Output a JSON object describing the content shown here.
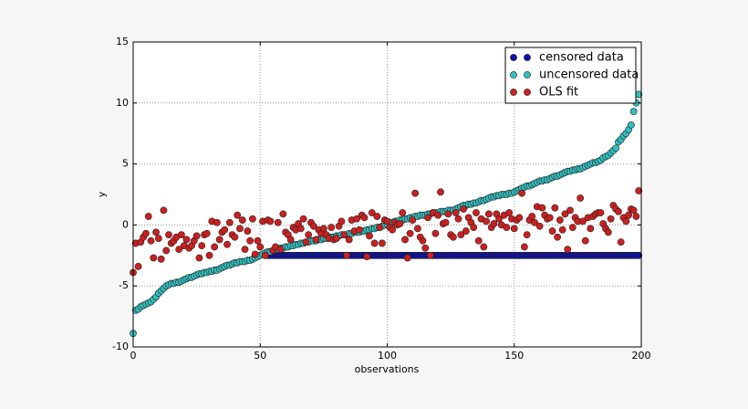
{
  "chart_data": {
    "type": "scatter",
    "xlabel": "observations",
    "ylabel": "y",
    "xlim": [
      0,
      200
    ],
    "xticks": [
      0,
      50,
      100,
      150,
      200
    ],
    "ylim": [
      -10,
      15
    ],
    "yticks": [
      -10,
      -5,
      0,
      5,
      10,
      15
    ],
    "grid": true,
    "legend": "upper right",
    "x": [
      0,
      1,
      2,
      3,
      4,
      5,
      6,
      7,
      8,
      9,
      10,
      11,
      12,
      13,
      14,
      15,
      16,
      17,
      18,
      19,
      20,
      21,
      22,
      23,
      24,
      25,
      26,
      27,
      28,
      29,
      30,
      31,
      32,
      33,
      34,
      35,
      36,
      37,
      38,
      39,
      40,
      41,
      42,
      43,
      44,
      45,
      46,
      47,
      48,
      49,
      50,
      51,
      52,
      53,
      54,
      55,
      56,
      57,
      58,
      59,
      60,
      61,
      62,
      63,
      64,
      65,
      66,
      67,
      68,
      69,
      70,
      71,
      72,
      73,
      74,
      75,
      76,
      77,
      78,
      79,
      80,
      81,
      82,
      83,
      84,
      85,
      86,
      87,
      88,
      89,
      90,
      91,
      92,
      93,
      94,
      95,
      96,
      97,
      98,
      99,
      100,
      101,
      102,
      103,
      104,
      105,
      106,
      107,
      108,
      109,
      110,
      111,
      112,
      113,
      114,
      115,
      116,
      117,
      118,
      119,
      120,
      121,
      122,
      123,
      124,
      125,
      126,
      127,
      128,
      129,
      130,
      131,
      132,
      133,
      134,
      135,
      136,
      137,
      138,
      139,
      140,
      141,
      142,
      143,
      144,
      145,
      146,
      147,
      148,
      149,
      150,
      151,
      152,
      153,
      154,
      155,
      156,
      157,
      158,
      159,
      160,
      161,
      162,
      163,
      164,
      165,
      166,
      167,
      168,
      169,
      170,
      171,
      172,
      173,
      174,
      175,
      176,
      177,
      178,
      179,
      180,
      181,
      182,
      183,
      184,
      185,
      186,
      187,
      188,
      189,
      190,
      191,
      192,
      193,
      194,
      195,
      196,
      197,
      198,
      199
    ],
    "series": [
      {
        "name": "censored data",
        "color": "#1010a8",
        "x": [
          53,
          54,
          55,
          56,
          57,
          58,
          59,
          60,
          61,
          62,
          63,
          64,
          65,
          66,
          67,
          68,
          69,
          70,
          71,
          72,
          73,
          74,
          75,
          76,
          77,
          78,
          79,
          80,
          81,
          82,
          83,
          84,
          85,
          86,
          87,
          88,
          89,
          90,
          91,
          92,
          93,
          94,
          95,
          96,
          97,
          98,
          99,
          100,
          101,
          102,
          103,
          104,
          105,
          106,
          107,
          108,
          109,
          110,
          111,
          112,
          113,
          114,
          115,
          116,
          117,
          118,
          119,
          120,
          121,
          122,
          123,
          124,
          125,
          126,
          127,
          128,
          129,
          130,
          131,
          132,
          133,
          134,
          135,
          136,
          137,
          138,
          139,
          140,
          141,
          142,
          143,
          144,
          145,
          146,
          147,
          148,
          149,
          150,
          151,
          152,
          153,
          154,
          155,
          156,
          157,
          158,
          159,
          160,
          161,
          162,
          163,
          164,
          165,
          166,
          167,
          168,
          169,
          170,
          171,
          172,
          173,
          174,
          175,
          176,
          177,
          178,
          179,
          180,
          181,
          182,
          183,
          184,
          185,
          186,
          187,
          188,
          189,
          190,
          191,
          192,
          193,
          194,
          195,
          196,
          197,
          198,
          199
        ],
        "values": [
          -2.5,
          -2.5,
          -2.5,
          -2.5,
          -2.5,
          -2.5,
          -2.5,
          -2.5,
          -2.5,
          -2.5,
          -2.5,
          -2.5,
          -2.5,
          -2.5,
          -2.5,
          -2.5,
          -2.5,
          -2.5,
          -2.5,
          -2.5,
          -2.5,
          -2.5,
          -2.5,
          -2.5,
          -2.5,
          -2.5,
          -2.5,
          -2.5,
          -2.5,
          -2.5,
          -2.5,
          -2.5,
          -2.5,
          -2.5,
          -2.5,
          -2.5,
          -2.5,
          -2.5,
          -2.5,
          -2.5,
          -2.5,
          -2.5,
          -2.5,
          -2.5,
          -2.5,
          -2.5,
          -2.5,
          -2.5,
          -2.5,
          -2.5,
          -2.5,
          -2.5,
          -2.5,
          -2.5,
          -2.5,
          -2.5,
          -2.5,
          -2.5,
          -2.5,
          -2.5,
          -2.5,
          -2.5,
          -2.5,
          -2.5,
          -2.5,
          -2.5,
          -2.5,
          -2.5,
          -2.5,
          -2.5,
          -2.5,
          -2.5,
          -2.5,
          -2.5,
          -2.5,
          -2.5,
          -2.5,
          -2.5,
          -2.5,
          -2.5,
          -2.5,
          -2.5,
          -2.5,
          -2.5,
          -2.5,
          -2.5,
          -2.5,
          -2.5,
          -2.5,
          -2.5,
          -2.5,
          -2.5,
          -2.5,
          -2.5,
          -2.5,
          -2.5,
          -2.5,
          -2.5,
          -2.5,
          -2.5,
          -2.5,
          -2.5,
          -2.5,
          -2.5,
          -2.5,
          -2.5,
          -2.5,
          -2.5,
          -2.5,
          -2.5,
          -2.5,
          -2.5,
          -2.5,
          -2.5,
          -2.5,
          -2.5,
          -2.5,
          -2.5,
          -2.5,
          -2.5,
          -2.5,
          -2.5,
          -2.5,
          -2.5,
          -2.5,
          -2.5,
          -2.5,
          -2.5,
          -2.5,
          -2.5,
          -2.5,
          -2.5,
          -2.5,
          -2.5,
          -2.5,
          -2.5,
          -2.5,
          -2.5,
          -2.5,
          -2.5,
          -2.5,
          -2.5,
          -2.5,
          -2.5,
          -2.5,
          -2.5,
          -2.5
        ]
      },
      {
        "name": "uncensored data",
        "color": "#33bfbf",
        "values": [
          -8.9,
          -7.0,
          -6.9,
          -6.7,
          -6.6,
          -6.5,
          -6.4,
          -6.3,
          -6.1,
          -5.9,
          -5.6,
          -5.4,
          -5.2,
          -5.0,
          -4.9,
          -4.8,
          -4.8,
          -4.7,
          -4.7,
          -4.6,
          -4.5,
          -4.4,
          -4.3,
          -4.3,
          -4.2,
          -4.1,
          -4.0,
          -4.0,
          -3.9,
          -3.9,
          -3.8,
          -3.8,
          -3.7,
          -3.7,
          -3.6,
          -3.5,
          -3.4,
          -3.3,
          -3.3,
          -3.2,
          -3.1,
          -3.1,
          -3.0,
          -3.0,
          -3.0,
          -2.9,
          -2.9,
          -2.8,
          -2.7,
          -2.6,
          -2.5,
          -2.4,
          -2.3,
          -2.2,
          -2.2,
          -2.1,
          -2.0,
          -2.0,
          -1.9,
          -1.9,
          -1.8,
          -1.8,
          -1.7,
          -1.7,
          -1.6,
          -1.6,
          -1.5,
          -1.5,
          -1.4,
          -1.4,
          -1.3,
          -1.3,
          -1.3,
          -1.2,
          -1.2,
          -1.1,
          -1.1,
          -1.0,
          -1.0,
          -1.0,
          -0.9,
          -0.9,
          -0.8,
          -0.8,
          -0.8,
          -0.7,
          -0.7,
          -0.6,
          -0.6,
          -0.6,
          -0.5,
          -0.5,
          -0.4,
          -0.4,
          -0.3,
          -0.3,
          -0.2,
          -0.2,
          -0.1,
          0.0,
          0.1,
          0.2,
          0.2,
          0.3,
          0.3,
          0.4,
          0.4,
          0.5,
          0.5,
          0.6,
          0.6,
          0.7,
          0.7,
          0.8,
          0.8,
          0.8,
          0.9,
          0.9,
          1.0,
          1.0,
          1.0,
          1.1,
          1.1,
          1.1,
          1.2,
          1.2,
          1.2,
          1.3,
          1.4,
          1.5,
          1.6,
          1.6,
          1.7,
          1.7,
          1.8,
          1.8,
          1.9,
          2.0,
          2.0,
          2.1,
          2.2,
          2.3,
          2.3,
          2.4,
          2.4,
          2.5,
          2.5,
          2.5,
          2.6,
          2.6,
          2.7,
          2.8,
          2.9,
          3.0,
          3.1,
          3.2,
          3.2,
          3.3,
          3.4,
          3.5,
          3.6,
          3.6,
          3.7,
          3.7,
          3.8,
          3.9,
          4.0,
          4.0,
          4.1,
          4.2,
          4.3,
          4.4,
          4.4,
          4.5,
          4.5,
          4.6,
          4.6,
          4.7,
          4.8,
          4.9,
          5.0,
          5.1,
          5.1,
          5.2,
          5.3,
          5.5,
          5.6,
          5.7,
          5.9,
          6.1,
          6.3,
          6.8,
          7.0,
          7.3,
          7.5,
          7.8,
          8.2,
          9.3,
          10.0,
          10.7
        ]
      },
      {
        "name": "OLS fit",
        "color": "#cc1f1f",
        "values": [
          -3.9,
          -1.5,
          -3.4,
          -1.4,
          -1.0,
          -0.7,
          0.7,
          -1.3,
          -2.7,
          -0.6,
          -1.1,
          -2.8,
          1.2,
          -2.1,
          -0.8,
          -1.5,
          -1.3,
          -1.0,
          -2.0,
          -0.8,
          -1.7,
          -1.2,
          -1.9,
          -1.7,
          -1.3,
          -0.9,
          -2.7,
          -1.7,
          -0.8,
          -0.7,
          -2.5,
          0.3,
          -1.8,
          0.2,
          -1.2,
          -0.6,
          -0.4,
          -1.6,
          0.2,
          -0.8,
          -1.0,
          0.8,
          -0.3,
          0.4,
          -2.0,
          -0.5,
          -1.3,
          0.5,
          -2.4,
          -1.3,
          -1.8,
          0.3,
          -2.5,
          0.4,
          0.3,
          -2.1,
          -1.8,
          0.2,
          -2.0,
          0.9,
          -0.6,
          -0.8,
          -1.2,
          -0.2,
          -0.4,
          0.1,
          -0.3,
          0.5,
          -1.4,
          -0.8,
          0.2,
          -0.1,
          -1.2,
          -0.4,
          -0.7,
          -0.3,
          -0.8,
          -1.1,
          -0.2,
          -1.2,
          -1.1,
          -0.1,
          0.3,
          -0.8,
          -2.5,
          -1.2,
          0.4,
          -0.5,
          0.5,
          -0.4,
          0.8,
          0.6,
          -2.6,
          -0.9,
          1.0,
          -1.5,
          0.7,
          -0.2,
          -1.5,
          0.4,
          0.3,
          -0.2,
          -0.4,
          0.2,
          0.0,
          0.1,
          1.0,
          -1.2,
          -2.7,
          -0.7,
          0.4,
          2.6,
          -0.3,
          -1.0,
          -1.3,
          -1.9,
          0.6,
          -2.5,
          1.0,
          -0.7,
          0.8,
          2.7,
          0.1,
          0.2,
          0.9,
          -0.8,
          -1.0,
          1.0,
          0.5,
          -0.8,
          1.3,
          -0.5,
          0.6,
          0.2,
          -0.2,
          1.0,
          -1.3,
          0.5,
          -1.8,
          0.3,
          0.9,
          -0.2,
          0.1,
          0.9,
          0.5,
          0.0,
          0.8,
          -0.2,
          1.0,
          0.5,
          -0.3,
          0.4,
          0.6,
          2.6,
          -1.8,
          -0.8,
          0.4,
          0.7,
          0.2,
          1.5,
          -0.1,
          1.4,
          0.8,
          0.5,
          0.6,
          -0.5,
          1.4,
          -1.0,
          0.4,
          -0.4,
          0.9,
          -2.0,
          1.2,
          -0.2,
          0.6,
          0.3,
          2.2,
          0.3,
          -1.3,
          0.6,
          -0.3,
          0.7,
          0.9,
          1.0,
          1.0,
          0.1,
          -0.3,
          -0.6,
          0.5,
          1.6,
          1.3,
          1.1,
          -1.4,
          0.6,
          0.3,
          0.8,
          1.3,
          1.2,
          0.7,
          2.8
        ]
      }
    ]
  }
}
